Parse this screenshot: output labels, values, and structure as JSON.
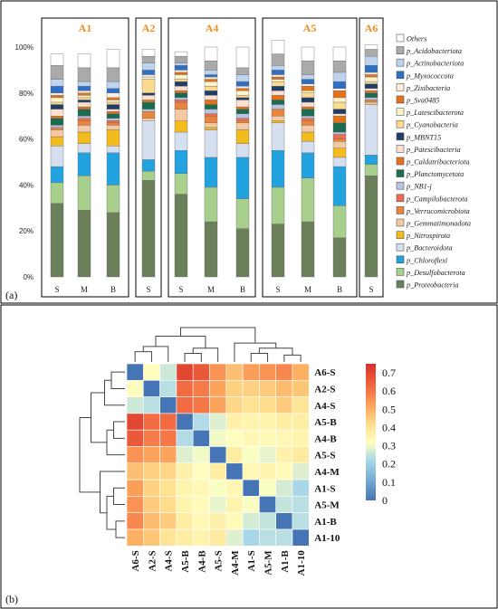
{
  "figure": {
    "panel_a_label": "(a)",
    "panel_b_label": "(b)",
    "group_title_color": "#f08c1e"
  },
  "chart_data": [
    {
      "type": "bar",
      "stacked": true,
      "ylim": [
        0,
        100
      ],
      "yticks": [
        "0%",
        "20%",
        "40%",
        "60%",
        "80%",
        "100%"
      ],
      "groups": [
        {
          "name": "A1",
          "samples": [
            "S",
            "M",
            "B"
          ]
        },
        {
          "name": "A2",
          "samples": [
            "S"
          ]
        },
        {
          "name": "A4",
          "samples": [
            "S",
            "M",
            "B"
          ]
        },
        {
          "name": "A5",
          "samples": [
            "S",
            "M",
            "B"
          ]
        },
        {
          "name": "A6",
          "samples": [
            "S"
          ]
        }
      ],
      "series": [
        {
          "name": "p_Proteobacteria",
          "color": "#6b7f5a",
          "values": [
            32,
            29,
            28,
            42,
            36,
            24,
            21,
            23,
            24,
            17,
            44
          ]
        },
        {
          "name": "p_Desulfobacterota",
          "color": "#a9cf8d",
          "values": [
            9,
            15,
            12,
            4,
            9,
            15,
            13,
            16,
            19,
            14,
            5
          ]
        },
        {
          "name": "p_Chloroflexi",
          "color": "#22a3e0",
          "values": [
            7,
            10,
            14,
            5,
            10,
            13,
            18,
            16,
            11,
            17,
            4
          ]
        },
        {
          "name": "p_Bacteroidota",
          "color": "#d6dff0",
          "values": [
            9,
            4,
            3,
            17,
            8,
            12,
            6,
            12,
            5,
            4,
            22
          ]
        },
        {
          "name": "p_Nitrospirota",
          "color": "#f2bc1e",
          "values": [
            4,
            5,
            7,
            0,
            5,
            1,
            6,
            1,
            4,
            4,
            0
          ]
        },
        {
          "name": "p_Gemmatimonadota",
          "color": "#f6c9a5",
          "values": [
            3,
            3,
            2,
            1,
            5,
            2,
            3,
            2,
            3,
            3,
            1
          ]
        },
        {
          "name": "p_Verrucomicrobiota",
          "color": "#e9843c",
          "values": [
            1,
            2,
            1,
            3,
            3,
            3,
            1,
            3,
            2,
            1,
            1
          ]
        },
        {
          "name": "p_Campilobacterota",
          "color": "#f26b4f",
          "values": [
            0,
            1,
            1,
            0,
            1,
            1,
            1,
            0,
            1,
            2,
            0
          ]
        },
        {
          "name": "p_NB1-j",
          "color": "#b6c4e2",
          "values": [
            1,
            1,
            1,
            1,
            1,
            2,
            2,
            2,
            1,
            1,
            1
          ]
        },
        {
          "name": "p_Planctomycetota",
          "color": "#1a6b50",
          "values": [
            3,
            3,
            2,
            3,
            2,
            2,
            2,
            2,
            3,
            4,
            2
          ]
        },
        {
          "name": "p_Caldatribacteriota",
          "color": "#e3721b",
          "values": [
            1,
            1,
            1,
            1,
            1,
            2,
            1,
            2,
            1,
            3,
            1
          ]
        },
        {
          "name": "p_Patescibacteria",
          "color": "#fbe0d2",
          "values": [
            3,
            2,
            1,
            2,
            2,
            2,
            3,
            2,
            2,
            1,
            1
          ]
        },
        {
          "name": "p_MBNT15",
          "color": "#1f3d66",
          "values": [
            2,
            1,
            2,
            1,
            2,
            2,
            1,
            2,
            2,
            2,
            2
          ]
        },
        {
          "name": "p_Cyanobacteria",
          "color": "#fbdc8e",
          "values": [
            1,
            1,
            1,
            6,
            1,
            2,
            1,
            2,
            2,
            3,
            1
          ]
        },
        {
          "name": "p_Latescibacterota",
          "color": "#fdf4cc",
          "values": [
            2,
            1,
            1,
            1,
            2,
            2,
            2,
            1,
            1,
            2,
            2
          ]
        },
        {
          "name": "p_Sva0485",
          "color": "#e3721b",
          "values": [
            1,
            1,
            1,
            0,
            1,
            1,
            1,
            1,
            2,
            3,
            1
          ]
        },
        {
          "name": "p_Zixibacteria",
          "color": "#fcecdc",
          "values": [
            1,
            1,
            2,
            1,
            1,
            1,
            1,
            1,
            1,
            1,
            1
          ]
        },
        {
          "name": "p_Myxococcota",
          "color": "#2d6fc4",
          "values": [
            3,
            2,
            2,
            2,
            2,
            1,
            2,
            2,
            2,
            3,
            3
          ]
        },
        {
          "name": "p_Actinobacteriota",
          "color": "#bfd3ee",
          "values": [
            3,
            2,
            3,
            3,
            1,
            2,
            3,
            2,
            2,
            4,
            4
          ]
        },
        {
          "name": "p_Acidobacteriota",
          "color": "#aaaaaa",
          "values": [
            6,
            6,
            6,
            3,
            3,
            4,
            3,
            5,
            6,
            5,
            3
          ]
        },
        {
          "name": "Others",
          "color": "#ffffff",
          "values": [
            5,
            6,
            8,
            3,
            2,
            6,
            9,
            6,
            6,
            6,
            2
          ]
        }
      ]
    },
    {
      "type": "heatmap",
      "row_labels": [
        "A6-S",
        "A2-S",
        "A4-S",
        "A5-B",
        "A4-B",
        "A5-S",
        "A4-M",
        "A1-S",
        "A5-M",
        "A1-B",
        "A1-10"
      ],
      "col_labels": [
        "A6-S",
        "A2-S",
        "A4-S",
        "A5-B",
        "A4-B",
        "A5-S",
        "A4-M",
        "A1-S",
        "A5-M",
        "A1-B",
        "A1-10"
      ],
      "vmin": 0,
      "vmax": 0.75,
      "colorbar_ticks": [
        0,
        0.1,
        0.2,
        0.3,
        0.4,
        0.5,
        0.6,
        0.7
      ],
      "values": [
        [
          0,
          0.32,
          0.26,
          0.7,
          0.66,
          0.55,
          0.47,
          0.53,
          0.55,
          0.57,
          0.5
        ],
        [
          0.32,
          0,
          0.24,
          0.62,
          0.59,
          0.52,
          0.44,
          0.44,
          0.45,
          0.48,
          0.46
        ],
        [
          0.26,
          0.24,
          0,
          0.62,
          0.6,
          0.52,
          0.43,
          0.41,
          0.42,
          0.45,
          0.4
        ],
        [
          0.7,
          0.62,
          0.62,
          0,
          0.23,
          0.28,
          0.36,
          0.35,
          0.35,
          0.37,
          0.37
        ],
        [
          0.66,
          0.59,
          0.6,
          0.23,
          0,
          0.3,
          0.32,
          0.34,
          0.33,
          0.34,
          0.35
        ],
        [
          0.55,
          0.52,
          0.52,
          0.28,
          0.3,
          0,
          0.37,
          0.31,
          0.29,
          0.36,
          0.38
        ],
        [
          0.47,
          0.44,
          0.43,
          0.36,
          0.32,
          0.37,
          0,
          0.34,
          0.35,
          0.33,
          0.28
        ],
        [
          0.53,
          0.44,
          0.41,
          0.35,
          0.34,
          0.31,
          0.34,
          0,
          0.31,
          0.27,
          0.22
        ],
        [
          0.55,
          0.45,
          0.42,
          0.35,
          0.33,
          0.29,
          0.35,
          0.31,
          0,
          0.25,
          0.24
        ],
        [
          0.57,
          0.48,
          0.45,
          0.37,
          0.34,
          0.36,
          0.33,
          0.27,
          0.25,
          0,
          0.24
        ],
        [
          0.5,
          0.46,
          0.4,
          0.37,
          0.35,
          0.38,
          0.28,
          0.22,
          0.24,
          0.24,
          0
        ]
      ],
      "dendrogram_order": [
        "A6-S",
        "A2-S",
        "A4-S",
        "A5-B",
        "A4-B",
        "A5-S",
        "A4-M",
        "A1-S",
        "A5-M",
        "A1-B",
        "A1-10"
      ]
    }
  ]
}
